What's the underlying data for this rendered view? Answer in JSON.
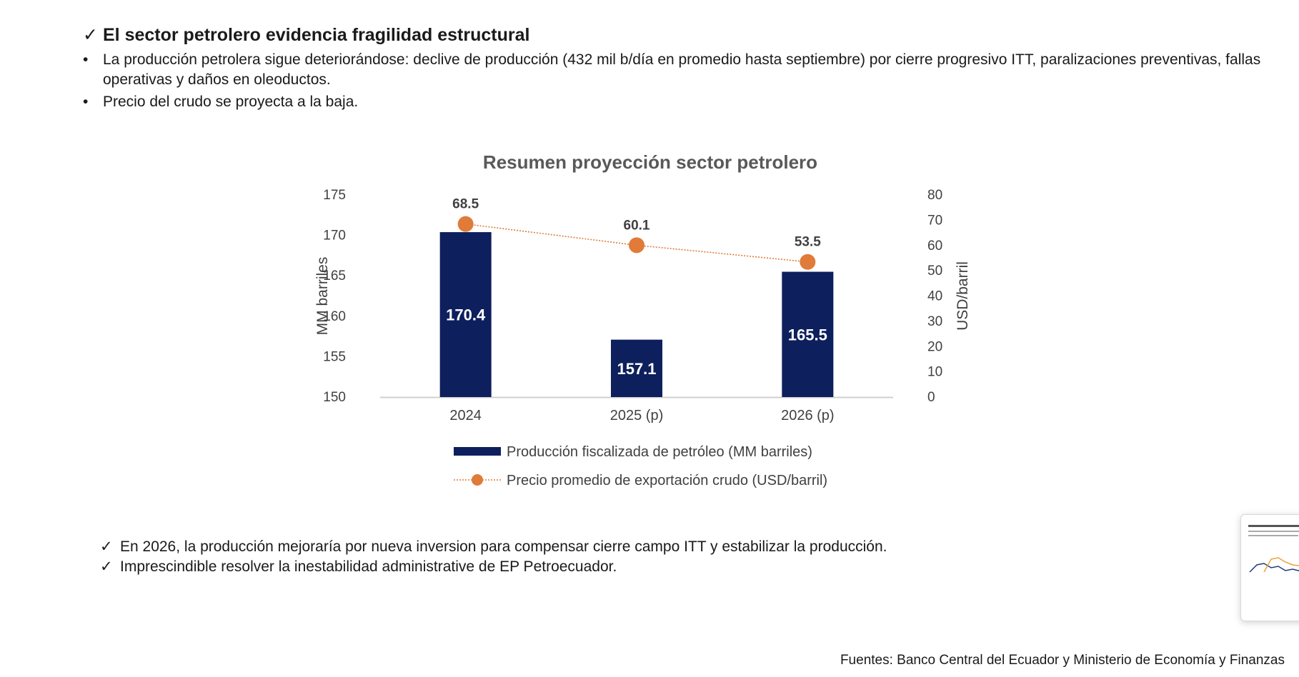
{
  "heading": {
    "check": "✓",
    "text": "El sector petrolero evidencia  fragilidad estructural"
  },
  "bullets": [
    {
      "marker": "•",
      "text": "La producción petrolera sigue deteriorándose: declive de producción   (432 mil b/día en promedio hasta septiembre) por  cierre progresivo ITT, paralizaciones preventivas, fallas operativas y daños en  oleoductos."
    },
    {
      "marker": "•",
      "text": "Precio del crudo se proyecta a la baja."
    }
  ],
  "chart_data": {
    "type": "bar+line",
    "title": "Resumen proyección sector petrolero",
    "categories": [
      "2024",
      "2025 (p)",
      "2026 (p)"
    ],
    "series": [
      {
        "name": "Producción fiscalizada de petróleo (MM barriles)",
        "type": "bar",
        "axis": "left",
        "values": [
          170.4,
          157.1,
          165.5
        ],
        "labels": [
          "170.4",
          "157.1",
          "165.5"
        ],
        "color": "#0d1f5c"
      },
      {
        "name": "Precio promedio de exportación crudo (USD/barril)",
        "type": "line",
        "axis": "right",
        "values": [
          68.5,
          60.1,
          53.5
        ],
        "labels": [
          "68.5",
          "60.1",
          "53.5"
        ],
        "color": "#e07b39"
      }
    ],
    "y_left": {
      "label": "MM barriles",
      "min": 150,
      "max": 175,
      "ticks": [
        "150",
        "155",
        "160",
        "165",
        "170",
        "175"
      ]
    },
    "y_right": {
      "label": "USD/barril",
      "min": 0,
      "max": 80,
      "ticks": [
        "0",
        "10",
        "20",
        "30",
        "40",
        "50",
        "60",
        "70",
        "80"
      ]
    },
    "legend_position": "bottom"
  },
  "conclusions": [
    {
      "check": "✓",
      "text": "En 2026, la producción mejoraría por  nueva inversion para compensar cierre campo ITT y estabilizar  la producción."
    },
    {
      "check": "✓",
      "text": "Imprescindible resolver  la inestabilidad administrative de EP Petroecuador."
    }
  ],
  "sources": "Fuentes: Banco Central del Ecuador y Ministerio de Economía y Finanzas"
}
